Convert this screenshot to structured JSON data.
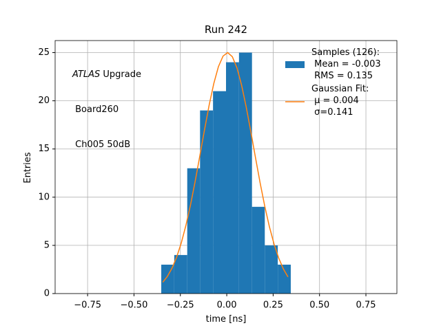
{
  "chart_data": {
    "type": "histogram",
    "title": "Run 242",
    "xlabel": "time [ns]",
    "ylabel": "Entries",
    "annotation": {
      "italic": "ATLAS",
      "lines": [
        " Upgrade",
        " Board260",
        " Ch005 50dB"
      ]
    },
    "bins": [
      -0.353,
      -0.283,
      -0.213,
      -0.144,
      -0.074,
      -0.004,
      0.066,
      0.136,
      0.205,
      0.275,
      0.345
    ],
    "series": [
      {
        "name": "Samples (126):\n Mean = -0.003\n RMS = 0.135",
        "color": "#1f77b4",
        "values": [
          3,
          4,
          13,
          19,
          21,
          24,
          25,
          9,
          5,
          3
        ]
      }
    ],
    "fit": {
      "name": "Gaussian Fit:\n μ = 0.004\n σ=0.141",
      "color": "#ff7f0e",
      "x": [
        -0.345,
        -0.32,
        -0.295,
        -0.27,
        -0.245,
        -0.22,
        -0.195,
        -0.17,
        -0.145,
        -0.12,
        -0.095,
        -0.07,
        -0.045,
        -0.02,
        0.005,
        0.03,
        0.055,
        0.08,
        0.105,
        0.13,
        0.155,
        0.18,
        0.205,
        0.23,
        0.255,
        0.28,
        0.305,
        0.33
      ],
      "values": [
        1.17,
        1.78,
        2.64,
        3.78,
        5.26,
        7.08,
        9.23,
        11.67,
        14.3,
        16.98,
        19.54,
        21.78,
        23.54,
        24.64,
        25.0,
        24.58,
        23.42,
        21.62,
        19.34,
        16.77,
        14.09,
        11.47,
        9.05,
        6.92,
        5.13,
        3.68,
        2.56,
        1.73
      ]
    },
    "xlim": [
      -0.925,
      0.917
    ],
    "ylim": [
      0,
      26.25
    ],
    "xticks": [
      {
        "value": -0.75,
        "label": "−0.75"
      },
      {
        "value": -0.5,
        "label": "−0.50"
      },
      {
        "value": -0.25,
        "label": "−0.25"
      },
      {
        "value": 0,
        "label": "0.00"
      },
      0.25,
      {
        "value": 0.5,
        "label": "0.50"
      },
      0.75
    ],
    "yticks": [
      0,
      5,
      10,
      15,
      20,
      25
    ],
    "grid": true,
    "legend": "upper right"
  }
}
